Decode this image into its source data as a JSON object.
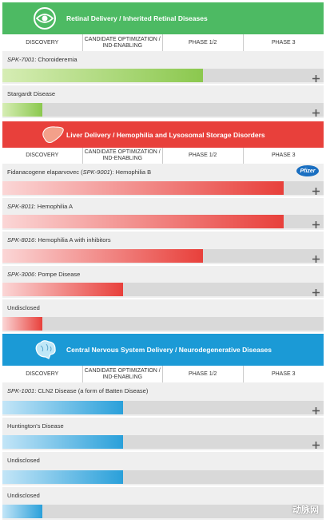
{
  "phases": [
    "DISCOVERY",
    "CANDIDATE OPTIMIZATION / IND-ENABLING",
    "PHASE 1/2",
    "PHASE 3"
  ],
  "sections": [
    {
      "title": "Retinal Delivery / Inherited Retinal Diseases",
      "color": "#4dba63",
      "bar_from": "#d6edb4",
      "bar_to": "#8bc84e",
      "programs": [
        {
          "label": [
            {
              "text": "SPK-7001",
              "italic": true
            },
            {
              "text": ": Choroideremia",
              "italic": false
            }
          ],
          "progress": 2.5,
          "expandable": true
        },
        {
          "label": [
            {
              "text": "Stargardt Disease",
              "italic": false
            }
          ],
          "progress": 0.5,
          "expandable": true
        }
      ]
    },
    {
      "title": "Liver Delivery / Hemophilia and Lysosomal Storage Disorders",
      "color": "#e8403b",
      "bar_from": "#fbd6d6",
      "bar_to": "#e8403b",
      "programs": [
        {
          "label": [
            {
              "text": "Fidanacogene elaparvovec (",
              "italic": false
            },
            {
              "text": "SPK-9001",
              "italic": true
            },
            {
              "text": "): Hemophilia B",
              "italic": false
            }
          ],
          "progress": 3.5,
          "expandable": true,
          "partner": "Pfizer"
        },
        {
          "label": [
            {
              "text": "SPK-8011",
              "italic": true
            },
            {
              "text": ": Hemophilia A",
              "italic": false
            }
          ],
          "progress": 3.5,
          "expandable": true
        },
        {
          "label": [
            {
              "text": "SPK-8016",
              "italic": true
            },
            {
              "text": ": Hemophilia A with inhibitors",
              "italic": false
            }
          ],
          "progress": 2.5,
          "expandable": true
        },
        {
          "label": [
            {
              "text": "SPK-3006",
              "italic": true
            },
            {
              "text": ": Pompe Disease",
              "italic": false
            }
          ],
          "progress": 1.5,
          "expandable": true
        },
        {
          "label": [
            {
              "text": "Undisclosed",
              "italic": false
            }
          ],
          "progress": 0.5,
          "expandable": false
        }
      ]
    },
    {
      "title": "Central Nervous System Delivery / Neurodegenerative Diseases",
      "color": "#1b9ad6",
      "bar_from": "#c3e5f7",
      "bar_to": "#2aa0da",
      "programs": [
        {
          "label": [
            {
              "text": "SPK-1001",
              "italic": true
            },
            {
              "text": ": CLN2 Disease (a form of Batten Disease)",
              "italic": false
            }
          ],
          "progress": 1.5,
          "expandable": true
        },
        {
          "label": [
            {
              "text": "Huntington's Disease",
              "italic": false
            }
          ],
          "progress": 1.5,
          "expandable": true
        },
        {
          "label": [
            {
              "text": "Undisclosed",
              "italic": false
            }
          ],
          "progress": 1.5,
          "expandable": false
        },
        {
          "label": [
            {
              "text": "Undisclosed",
              "italic": false
            }
          ],
          "progress": 0.5,
          "expandable": false
        }
      ]
    }
  ],
  "watermark": "动脉网"
}
